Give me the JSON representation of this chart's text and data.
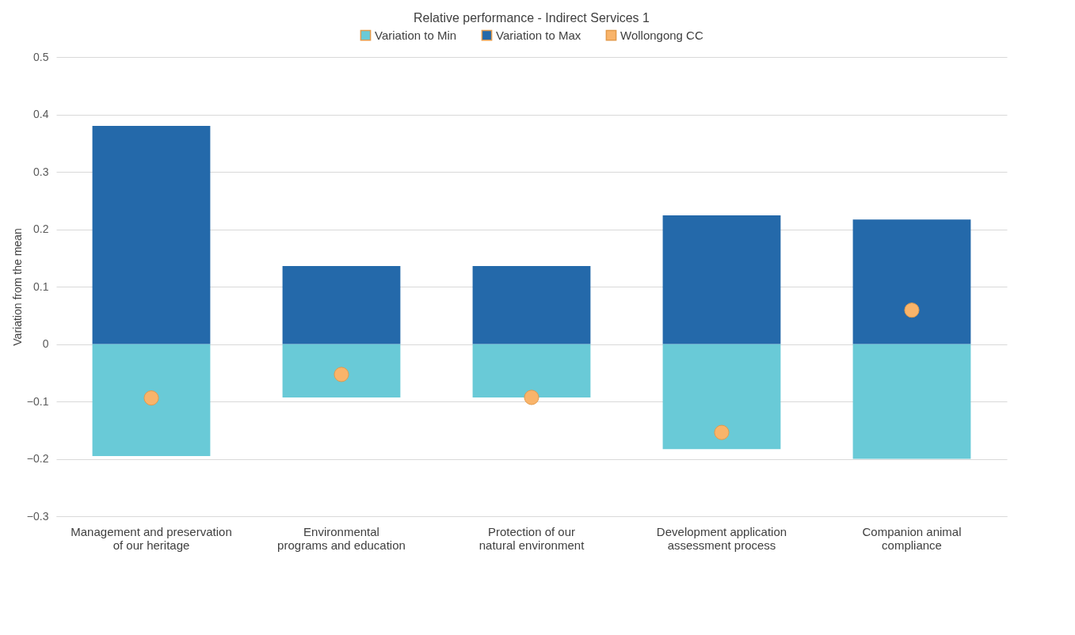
{
  "chart_data": {
    "type": "bar",
    "title": "Relative performance - Indirect Services 1",
    "ylabel": "Variation from the mean",
    "categories": [
      "Management and preservation of our heritage",
      "Environmental programs and education",
      "Protection of our natural environment",
      "Development application assessment process",
      "Companion animal compliance"
    ],
    "series": [
      {
        "name": "Variation to Min",
        "color": "#69cad7",
        "values": [
          -0.195,
          -0.093,
          -0.093,
          -0.183,
          -0.2
        ]
      },
      {
        "name": "Variation to Max",
        "color": "#2469aa",
        "values": [
          0.38,
          0.136,
          0.136,
          0.224,
          0.217
        ]
      },
      {
        "name": "Wollongong CC",
        "type": "scatter",
        "color": "#f9b46a",
        "x": [
          "Management and preservation of our heritage",
          "Environmental programs and education",
          "Protection of our natural environment",
          "Development application assessment process",
          "Companion animal compliance"
        ],
        "values": [
          -0.094,
          -0.053,
          -0.093,
          -0.154,
          0.059
        ]
      }
    ],
    "stacked": true,
    "ylim": [
      -0.3,
      0.5
    ],
    "yticks": [
      -0.3,
      -0.2,
      -0.1,
      0,
      0.1,
      0.2,
      0.3,
      0.4,
      0.5
    ],
    "grid": "y",
    "legend": "top",
    "marker": "circle"
  }
}
